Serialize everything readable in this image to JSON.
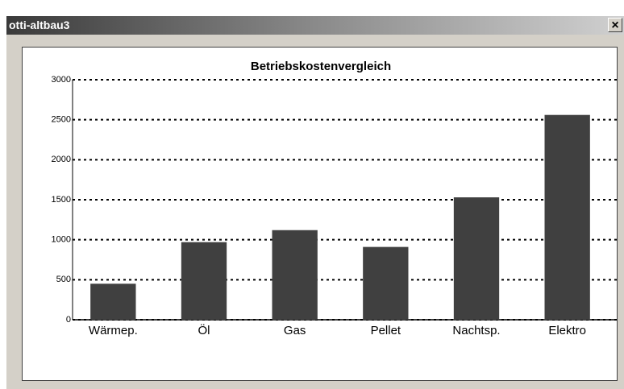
{
  "window": {
    "title": "otti-altbau3",
    "close": "×"
  },
  "chart_data": {
    "type": "bar",
    "title": "Betriebskostenvergleich",
    "categories": [
      "Wärmep.",
      "Öl",
      "Gas",
      "Pellet",
      "Nachtsp.",
      "Elektro"
    ],
    "values": [
      450,
      970,
      1120,
      910,
      1530,
      2560
    ],
    "color": "#404040",
    "ylim": [
      0,
      3000
    ],
    "yticks": [
      0,
      500,
      1000,
      1500,
      2000,
      2500,
      3000
    ],
    "grid": true
  }
}
